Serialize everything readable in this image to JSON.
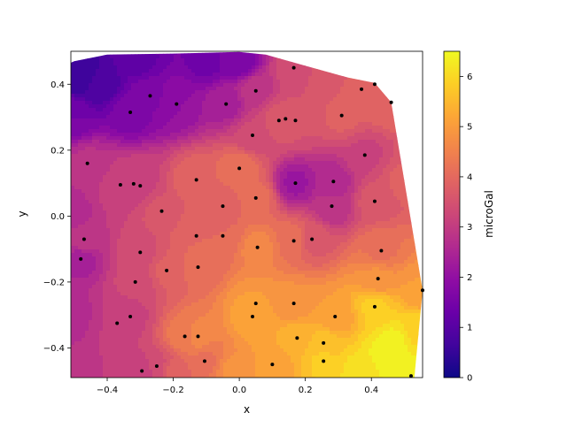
{
  "chart_data": {
    "type": "contourf",
    "title": "",
    "xlabel": "x",
    "ylabel": "y",
    "xlim": [
      -0.51,
      0.555
    ],
    "ylim": [
      -0.49,
      0.5
    ],
    "xticks": [
      -0.4,
      -0.2,
      0.0,
      0.2,
      0.4
    ],
    "xtick_labels": [
      "−0.4",
      "−0.2",
      "0.0",
      "0.2",
      "0.4"
    ],
    "yticks": [
      -0.4,
      -0.2,
      0.0,
      0.2,
      0.4
    ],
    "ytick_labels": [
      "−0.4",
      "−0.2",
      "0.0",
      "0.2",
      "0.4"
    ],
    "grid": false,
    "colormap": "plasma",
    "colorbar": {
      "label": "microGal",
      "range": [
        0,
        6.5
      ],
      "ticks": [
        0,
        1,
        2,
        3,
        4,
        5,
        6
      ],
      "tick_labels": [
        "0",
        "1",
        "2",
        "3",
        "4",
        "5",
        "6"
      ]
    },
    "hull": [
      [
        -0.51,
        -0.48
      ],
      [
        -0.51,
        0.465
      ],
      [
        -0.5,
        0.47
      ],
      [
        -0.4,
        0.49
      ],
      [
        -0.2,
        0.493
      ],
      [
        0.0,
        0.498
      ],
      [
        0.08,
        0.49
      ],
      [
        0.2,
        0.456
      ],
      [
        0.33,
        0.42
      ],
      [
        0.41,
        0.404
      ],
      [
        0.46,
        0.345
      ],
      [
        0.555,
        -0.225
      ],
      [
        0.53,
        -0.49
      ],
      [
        -0.51,
        -0.49
      ]
    ],
    "stations": [
      [
        -0.48,
        -0.13,
        2.4
      ],
      [
        -0.47,
        -0.07,
        3.0
      ],
      [
        -0.46,
        0.16,
        2.8
      ],
      [
        -0.37,
        -0.325,
        3.0
      ],
      [
        -0.36,
        0.095,
        3.1
      ],
      [
        -0.33,
        -0.305,
        3.2
      ],
      [
        -0.32,
        0.098,
        3.2
      ],
      [
        -0.3,
        0.092,
        3.2
      ],
      [
        -0.315,
        -0.2,
        3.3
      ],
      [
        -0.3,
        -0.11,
        3.4
      ],
      [
        -0.295,
        -0.47,
        3.0
      ],
      [
        -0.25,
        -0.455,
        3.4
      ],
      [
        -0.235,
        0.015,
        3.6
      ],
      [
        -0.22,
        -0.165,
        3.8
      ],
      [
        -0.165,
        -0.365,
        4.4
      ],
      [
        -0.125,
        -0.365,
        4.6
      ],
      [
        -0.105,
        -0.44,
        4.2
      ],
      [
        -0.13,
        -0.06,
        4.0
      ],
      [
        -0.125,
        -0.155,
        4.1
      ],
      [
        -0.13,
        0.11,
        4.0
      ],
      [
        -0.05,
        0.03,
        3.9
      ],
      [
        -0.05,
        -0.06,
        4.0
      ],
      [
        0.0,
        0.145,
        4.2
      ],
      [
        0.04,
        0.245,
        3.3
      ],
      [
        0.05,
        0.055,
        4.1
      ],
      [
        0.055,
        -0.095,
        4.6
      ],
      [
        0.05,
        -0.265,
        5.0
      ],
      [
        0.04,
        -0.305,
        5.2
      ],
      [
        0.1,
        -0.45,
        5.1
      ],
      [
        0.165,
        -0.265,
        4.8
      ],
      [
        0.175,
        -0.37,
        5.4
      ],
      [
        0.165,
        -0.075,
        4.2
      ],
      [
        0.22,
        -0.07,
        3.6
      ],
      [
        0.255,
        -0.385,
        5.6
      ],
      [
        0.255,
        -0.44,
        5.8
      ],
      [
        0.29,
        -0.305,
        5.0
      ],
      [
        0.28,
        0.03,
        2.8
      ],
      [
        0.285,
        0.105,
        2.6
      ],
      [
        0.17,
        0.1,
        2.2
      ],
      [
        0.12,
        0.29,
        3.6
      ],
      [
        0.14,
        0.295,
        3.6
      ],
      [
        0.17,
        0.29,
        3.5
      ],
      [
        0.165,
        0.45,
        3.4
      ],
      [
        0.05,
        0.38,
        2.9
      ],
      [
        -0.04,
        0.34,
        2.4
      ],
      [
        -0.19,
        0.34,
        2.0
      ],
      [
        -0.27,
        0.365,
        1.7
      ],
      [
        -0.33,
        0.315,
        1.6
      ],
      [
        -0.42,
        0.4,
        0.8
      ],
      [
        -0.49,
        0.43,
        0.5
      ],
      [
        0.31,
        0.305,
        3.8
      ],
      [
        0.37,
        0.385,
        3.9
      ],
      [
        0.41,
        0.4,
        3.9
      ],
      [
        0.46,
        0.345,
        4.0
      ],
      [
        0.38,
        0.185,
        3.2
      ],
      [
        0.41,
        0.045,
        3.6
      ],
      [
        0.43,
        -0.105,
        4.2
      ],
      [
        0.42,
        -0.19,
        4.8
      ],
      [
        0.41,
        -0.275,
        5.8
      ],
      [
        0.555,
        -0.225,
        5.0
      ],
      [
        0.52,
        -0.485,
        6.4
      ],
      [
        0.45,
        -0.42,
        6.4
      ],
      [
        0.47,
        -0.38,
        6.3
      ],
      [
        0.5,
        0.1,
        3.8
      ],
      [
        -0.2,
        -0.47,
        3.8
      ],
      [
        -0.02,
        -0.47,
        4.8
      ],
      [
        0.36,
        -0.47,
        6.1
      ],
      [
        0.0,
        0.47,
        1.6
      ],
      [
        -0.1,
        0.47,
        1.4
      ],
      [
        -0.3,
        0.47,
        1.2
      ],
      [
        0.28,
        0.42,
        3.7
      ],
      [
        0.54,
        -0.35,
        5.9
      ],
      [
        -0.51,
        -0.3,
        2.6
      ],
      [
        -0.51,
        0.0,
        2.6
      ],
      [
        -0.51,
        0.3,
        1.5
      ],
      [
        -0.51,
        -0.48,
        2.8
      ]
    ],
    "plotted_stations": [
      [
        -0.48,
        -0.13
      ],
      [
        -0.47,
        -0.07
      ],
      [
        -0.46,
        0.16
      ],
      [
        -0.37,
        -0.325
      ],
      [
        -0.36,
        0.095
      ],
      [
        -0.33,
        -0.305
      ],
      [
        -0.32,
        0.098
      ],
      [
        -0.3,
        0.092
      ],
      [
        -0.315,
        -0.2
      ],
      [
        -0.3,
        -0.11
      ],
      [
        -0.295,
        -0.47
      ],
      [
        -0.25,
        -0.455
      ],
      [
        -0.235,
        0.015
      ],
      [
        -0.22,
        -0.165
      ],
      [
        -0.165,
        -0.365
      ],
      [
        -0.125,
        -0.365
      ],
      [
        -0.105,
        -0.44
      ],
      [
        -0.13,
        -0.06
      ],
      [
        -0.125,
        -0.155
      ],
      [
        -0.13,
        0.11
      ],
      [
        -0.05,
        0.03
      ],
      [
        -0.05,
        -0.06
      ],
      [
        0.0,
        0.145
      ],
      [
        0.04,
        0.245
      ],
      [
        0.05,
        0.055
      ],
      [
        0.055,
        -0.095
      ],
      [
        0.05,
        -0.265
      ],
      [
        0.04,
        -0.305
      ],
      [
        0.1,
        -0.45
      ],
      [
        0.165,
        -0.265
      ],
      [
        0.175,
        -0.37
      ],
      [
        0.165,
        -0.075
      ],
      [
        0.22,
        -0.07
      ],
      [
        0.255,
        -0.385
      ],
      [
        0.255,
        -0.44
      ],
      [
        0.29,
        -0.305
      ],
      [
        0.28,
        0.03
      ],
      [
        0.285,
        0.105
      ],
      [
        0.17,
        0.1
      ],
      [
        0.12,
        0.29
      ],
      [
        0.14,
        0.295
      ],
      [
        0.17,
        0.29
      ],
      [
        0.165,
        0.45
      ],
      [
        0.05,
        0.38
      ],
      [
        -0.04,
        0.34
      ],
      [
        -0.19,
        0.34
      ],
      [
        -0.27,
        0.365
      ],
      [
        -0.33,
        0.315
      ],
      [
        0.31,
        0.305
      ],
      [
        0.37,
        0.385
      ],
      [
        0.41,
        0.4
      ],
      [
        0.46,
        0.345
      ],
      [
        0.38,
        0.185
      ],
      [
        0.41,
        0.045
      ],
      [
        0.43,
        -0.105
      ],
      [
        0.42,
        -0.19
      ],
      [
        0.41,
        -0.275
      ],
      [
        0.555,
        -0.225
      ],
      [
        0.52,
        -0.485
      ]
    ]
  }
}
